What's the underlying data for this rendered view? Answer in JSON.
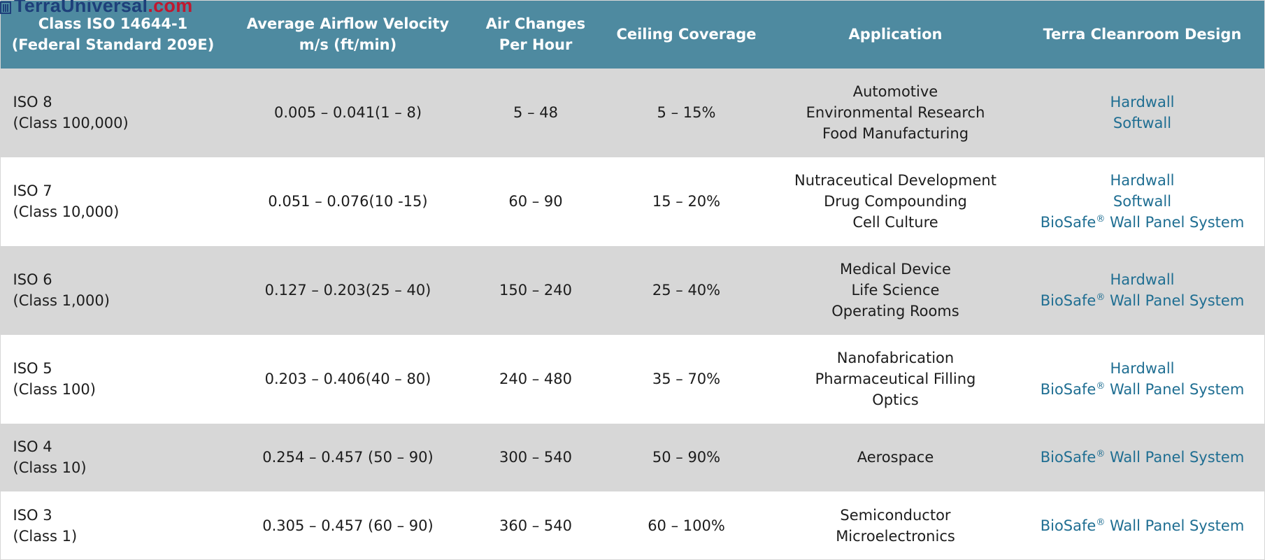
{
  "watermark": {
    "name": "TerraUniversal",
    "suffix": ".com"
  },
  "table": {
    "headers": [
      {
        "line1": "Class ISO 14644-1",
        "line2": "(Federal Standard 209E)"
      },
      {
        "line1": "Average Airflow Velocity",
        "line2": "m/s (ft/min)"
      },
      {
        "line1": "Air Changes",
        "line2": "Per Hour"
      },
      {
        "line1": "Ceiling Coverage",
        "line2": ""
      },
      {
        "line1": "Application",
        "line2": ""
      },
      {
        "line1": "Terra Cleanroom Design",
        "line2": ""
      }
    ],
    "rows": [
      {
        "iso": "ISO 8",
        "fed": "(Class 100,000)",
        "velocity": "0.005 – 0.041(1 – 8)",
        "ach": "5 – 48",
        "coverage": "5 – 15%",
        "applications": [
          "Automotive",
          "Environmental Research",
          "Food Manufacturing"
        ],
        "designs": [
          {
            "label": "Hardwall",
            "reg": ""
          },
          {
            "label": "Softwall",
            "reg": ""
          }
        ]
      },
      {
        "iso": "ISO 7",
        "fed": "(Class 10,000)",
        "velocity": "0.051 – 0.076(10 -15)",
        "ach": "60 – 90",
        "coverage": "15 – 20%",
        "applications": [
          "Nutraceutical Development",
          "Drug Compounding",
          "Cell Culture"
        ],
        "designs": [
          {
            "label": "Hardwall",
            "reg": ""
          },
          {
            "label": "Softwall",
            "reg": ""
          },
          {
            "label": "BioSafe",
            "reg": "®",
            "rest": " Wall Panel System"
          }
        ]
      },
      {
        "iso": "ISO 6",
        "fed": "(Class 1,000)",
        "velocity": "0.127 – 0.203(25 – 40)",
        "ach": "150 – 240",
        "coverage": "25 – 40%",
        "applications": [
          "Medical Device",
          "Life Science",
          "Operating Rooms"
        ],
        "designs": [
          {
            "label": "Hardwall",
            "reg": ""
          },
          {
            "label": "BioSafe",
            "reg": "®",
            "rest": " Wall Panel System"
          }
        ]
      },
      {
        "iso": "ISO 5",
        "fed": "(Class 100)",
        "velocity": "0.203 – 0.406(40 – 80)",
        "ach": "240 – 480",
        "coverage": "35 – 70%",
        "applications": [
          "Nanofabrication",
          "Pharmaceutical Filling",
          "Optics"
        ],
        "designs": [
          {
            "label": "Hardwall",
            "reg": ""
          },
          {
            "label": "BioSafe",
            "reg": "®",
            "rest": " Wall Panel System"
          }
        ]
      },
      {
        "iso": "ISO 4",
        "fed": "(Class 10)",
        "velocity": "0.254 – 0.457 (50 – 90)",
        "ach": "300 – 540",
        "coverage": "50 – 90%",
        "applications": [
          "Aerospace"
        ],
        "designs": [
          {
            "label": "BioSafe",
            "reg": "®",
            "rest": " Wall Panel System"
          }
        ]
      },
      {
        "iso": "ISO 3",
        "fed": "(Class 1)",
        "velocity": "0.305 – 0.457 (60 – 90)",
        "ach": "360 – 540",
        "coverage": "60 – 100%",
        "applications": [
          "Semiconductor",
          "Microelectronics"
        ],
        "designs": [
          {
            "label": "BioSafe",
            "reg": "®",
            "rest": " Wall Panel System"
          }
        ]
      }
    ]
  },
  "colors": {
    "header_bg": "#4e8aa0",
    "row_gray": "#d7d7d7",
    "link": "#1f6e92",
    "watermark_name": "#1e3f7a",
    "watermark_suffix": "#c0182f"
  }
}
